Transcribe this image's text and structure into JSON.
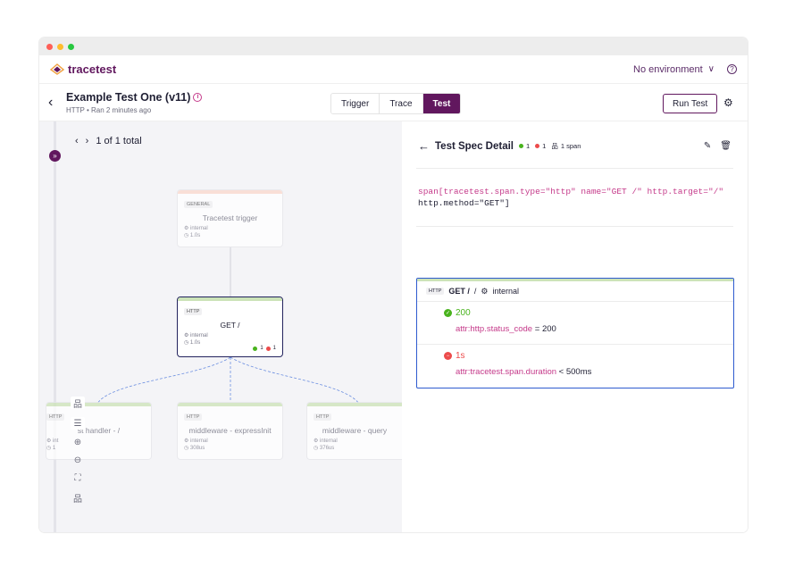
{
  "colors": {
    "brand": "#61175e",
    "pass": "#49b31d",
    "fail": "#ec4b4b",
    "selected": "#23235e",
    "card_border": "#2e5bcf"
  },
  "app": {
    "name": "tracetest",
    "logo_icon": "tracetest-logo-icon"
  },
  "topbar": {
    "environment": "No environment",
    "help_icon": "help-icon"
  },
  "test": {
    "title": "Example Test One (v11)",
    "subtitle": "HTTP • Ran 2 minutes ago"
  },
  "tabs": [
    {
      "label": "Trigger"
    },
    {
      "label": "Trace"
    },
    {
      "label": "Test",
      "active": true
    }
  ],
  "actions": {
    "run": "Run Test"
  },
  "pager": {
    "text": "1 of 1 total"
  },
  "nodes": {
    "trigger": {
      "type": "GENERAL",
      "name": "Tracetest trigger",
      "service": "internal",
      "duration": "1.0s"
    },
    "get": {
      "type": "HTTP",
      "name": "GET /",
      "service": "internal",
      "duration": "1.0s",
      "pass": "1",
      "fail": "1"
    },
    "handler": {
      "type": "HTTP",
      "name": "st handler - /",
      "service": "int",
      "duration": "1"
    },
    "expressinit": {
      "type": "HTTP",
      "name": "middleware - expressInit",
      "service": "internal",
      "duration": "308us"
    },
    "query": {
      "type": "HTTP",
      "name": "middleware - query",
      "service": "internal",
      "duration": "376us"
    }
  },
  "panel": {
    "title": "Test Spec Detail",
    "pass_count": "1",
    "fail_count": "1",
    "span_count": "1 span",
    "selector_key": "span[tracetest.span.type=\"http\" name=\"GET /\" http.target=\"/\"",
    "selector_cont": "http.method=\"GET\"]",
    "card": {
      "tag": "HTTP",
      "name": "GET /",
      "service": "internal",
      "results": [
        {
          "status": "pass",
          "value": "200",
          "attr": "attr:http.status_code",
          "op": "=",
          "expected": "200"
        },
        {
          "status": "fail",
          "value": "1s",
          "attr": "attr:tracetest.span.duration",
          "op": "<",
          "expected": "500ms"
        }
      ]
    }
  }
}
